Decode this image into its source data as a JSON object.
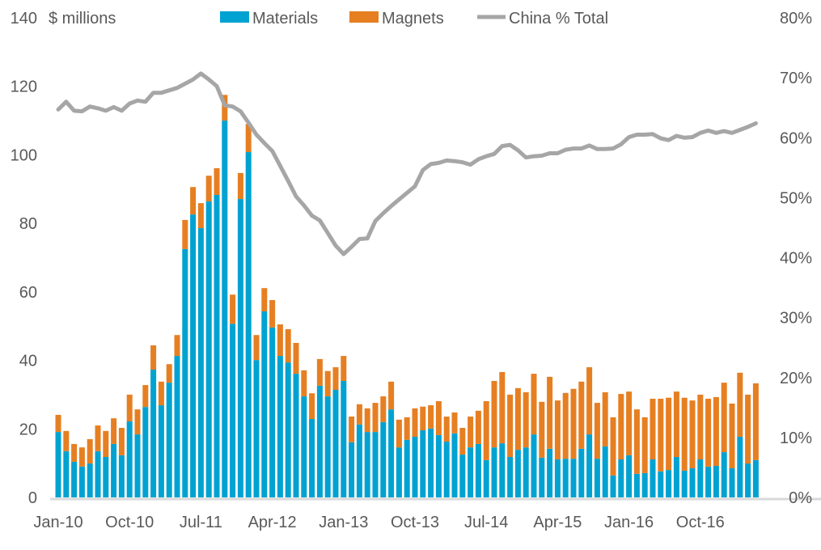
{
  "chart_data": {
    "type": "bar",
    "stacked": true,
    "title": "",
    "ylabel": "$ millions",
    "y2label": "",
    "ylim": [
      0,
      140
    ],
    "y_ticks": [
      "0",
      "20",
      "40",
      "60",
      "80",
      "100",
      "120",
      "140"
    ],
    "y2lim": [
      0,
      80
    ],
    "y2_ticks": [
      "0%",
      "10%",
      "20%",
      "30%",
      "40%",
      "50%",
      "60%",
      "70%",
      "80%"
    ],
    "x_tick_labels": [
      "Jan-10",
      "Oct-10",
      "Jul-11",
      "Apr-12",
      "Jan-13",
      "Oct-13",
      "Jul-14",
      "Apr-15",
      "Jan-16",
      "Oct-16"
    ],
    "legend_position": "top",
    "grid": false,
    "categories": [
      "Jan-10",
      "Feb-10",
      "Mar-10",
      "Apr-10",
      "May-10",
      "Jun-10",
      "Jul-10",
      "Aug-10",
      "Sep-10",
      "Oct-10",
      "Nov-10",
      "Dec-10",
      "Jan-11",
      "Feb-11",
      "Mar-11",
      "Apr-11",
      "May-11",
      "Jun-11",
      "Jul-11",
      "Aug-11",
      "Sep-11",
      "Oct-11",
      "Nov-11",
      "Dec-11",
      "Jan-12",
      "Feb-12",
      "Mar-12",
      "Apr-12",
      "May-12",
      "Jun-12",
      "Jul-12",
      "Aug-12",
      "Sep-12",
      "Oct-12",
      "Nov-12",
      "Dec-12",
      "Jan-13",
      "Feb-13",
      "Mar-13",
      "Apr-13",
      "May-13",
      "Jun-13",
      "Jul-13",
      "Aug-13",
      "Sep-13",
      "Oct-13",
      "Nov-13",
      "Dec-13",
      "Jan-14",
      "Feb-14",
      "Mar-14",
      "Apr-14",
      "May-14",
      "Jun-14",
      "Jul-14",
      "Aug-14",
      "Sep-14",
      "Oct-14",
      "Nov-14",
      "Dec-14",
      "Jan-15",
      "Feb-15",
      "Mar-15",
      "Apr-15",
      "May-15",
      "Jun-15",
      "Jul-15",
      "Aug-15",
      "Sep-15",
      "Oct-15",
      "Nov-15",
      "Dec-15",
      "Jan-16",
      "Feb-16",
      "Mar-16",
      "Apr-16",
      "May-16",
      "Jun-16",
      "Jul-16",
      "Aug-16",
      "Sep-16",
      "Oct-16",
      "Nov-16",
      "Dec-16",
      "Jan-17",
      "Feb-17",
      "Mar-17",
      "Apr-17",
      "May-17"
    ],
    "series": [
      {
        "name": "Materials",
        "color": "#00A2D1",
        "axis": "left",
        "values": [
          19.1,
          13.5,
          10.4,
          9.0,
          9.9,
          13.5,
          11.8,
          15.6,
          12.3,
          22.2,
          18.4,
          26.4,
          37.3,
          26.9,
          33.5,
          41.3,
          72.5,
          82.6,
          78.6,
          86.4,
          88.3,
          110.0,
          50.7,
          87.1,
          100.8,
          40.1,
          54.3,
          49.6,
          41.3,
          39.4,
          36.1,
          29.5,
          22.9,
          32.6,
          29.5,
          31.4,
          34.0,
          16.1,
          21.3,
          19.1,
          19.1,
          22.0,
          25.7,
          14.6,
          16.8,
          17.7,
          19.6,
          20.1,
          18.2,
          16.3,
          18.7,
          12.5,
          14.6,
          15.6,
          10.9,
          14.6,
          15.8,
          11.8,
          13.9,
          14.6,
          18.4,
          11.6,
          14.2,
          11.1,
          11.3,
          11.3,
          14.2,
          18.4,
          11.3,
          14.9,
          6.4,
          11.1,
          12.3,
          6.9,
          7.1,
          11.1,
          7.6,
          8.0,
          11.8,
          7.8,
          8.5,
          11.1,
          9.0,
          9.2,
          13.2,
          8.5,
          17.7,
          9.9,
          10.9
        ]
      },
      {
        "name": "Magnets",
        "color": "#E67F22",
        "axis": "left",
        "values": [
          5.0,
          5.9,
          5.2,
          5.6,
          7.1,
          7.5,
          7.6,
          7.5,
          8.0,
          7.8,
          7.3,
          6.4,
          7.1,
          6.9,
          5.4,
          6.1,
          8.5,
          8.0,
          7.3,
          7.5,
          7.8,
          7.5,
          8.5,
          7.6,
          8.2,
          7.3,
          6.8,
          8.0,
          9.2,
          9.7,
          9.0,
          7.6,
          7.5,
          7.8,
          7.4,
          6.6,
          7.3,
          7.5,
          5.9,
          6.9,
          8.5,
          7.5,
          8.1,
          8.1,
          6.6,
          8.3,
          6.9,
          6.8,
          9.9,
          7.3,
          6.1,
          7.8,
          9.0,
          9.7,
          17.2,
          19.4,
          20.8,
          18.2,
          18.0,
          16.1,
          17.7,
          16.3,
          21.0,
          17.2,
          19.2,
          20.4,
          19.6,
          19.6,
          16.3,
          15.8,
          17.0,
          19.1,
          18.6,
          18.8,
          16.3,
          17.7,
          21.2,
          21.1,
          19.1,
          21.3,
          19.8,
          18.9,
          19.8,
          20.1,
          20.3,
          18.9,
          18.7,
          20.1,
          22.4
        ]
      },
      {
        "name": "China % Total",
        "color": "#A6A6A6",
        "axis": "right",
        "type": "line",
        "values": [
          64.7,
          66.0,
          64.5,
          64.4,
          65.2,
          64.9,
          64.5,
          65.1,
          64.5,
          65.7,
          66.2,
          66.0,
          67.5,
          67.5,
          67.9,
          68.3,
          69.0,
          69.7,
          70.7,
          69.7,
          68.6,
          65.4,
          65.2,
          64.4,
          62.5,
          60.5,
          59.1,
          57.8,
          55.3,
          52.8,
          50.2,
          48.7,
          47.0,
          46.2,
          44.1,
          42.0,
          40.6,
          41.8,
          43.1,
          43.2,
          46.1,
          47.4,
          48.6,
          49.7,
          50.8,
          51.9,
          54.6,
          55.6,
          55.8,
          56.2,
          56.1,
          55.9,
          55.5,
          56.4,
          56.9,
          57.3,
          58.6,
          58.8,
          57.9,
          56.7,
          56.9,
          57.0,
          57.4,
          57.4,
          58.0,
          58.2,
          58.2,
          58.7,
          58.1,
          58.1,
          58.2,
          58.9,
          60.1,
          60.5,
          60.5,
          60.6,
          59.9,
          59.6,
          60.3,
          60.0,
          60.1,
          60.8,
          61.2,
          60.8,
          61.1,
          60.8,
          61.3,
          61.8,
          62.4
        ]
      }
    ],
    "axis_line_color": "#D9D9D9"
  }
}
